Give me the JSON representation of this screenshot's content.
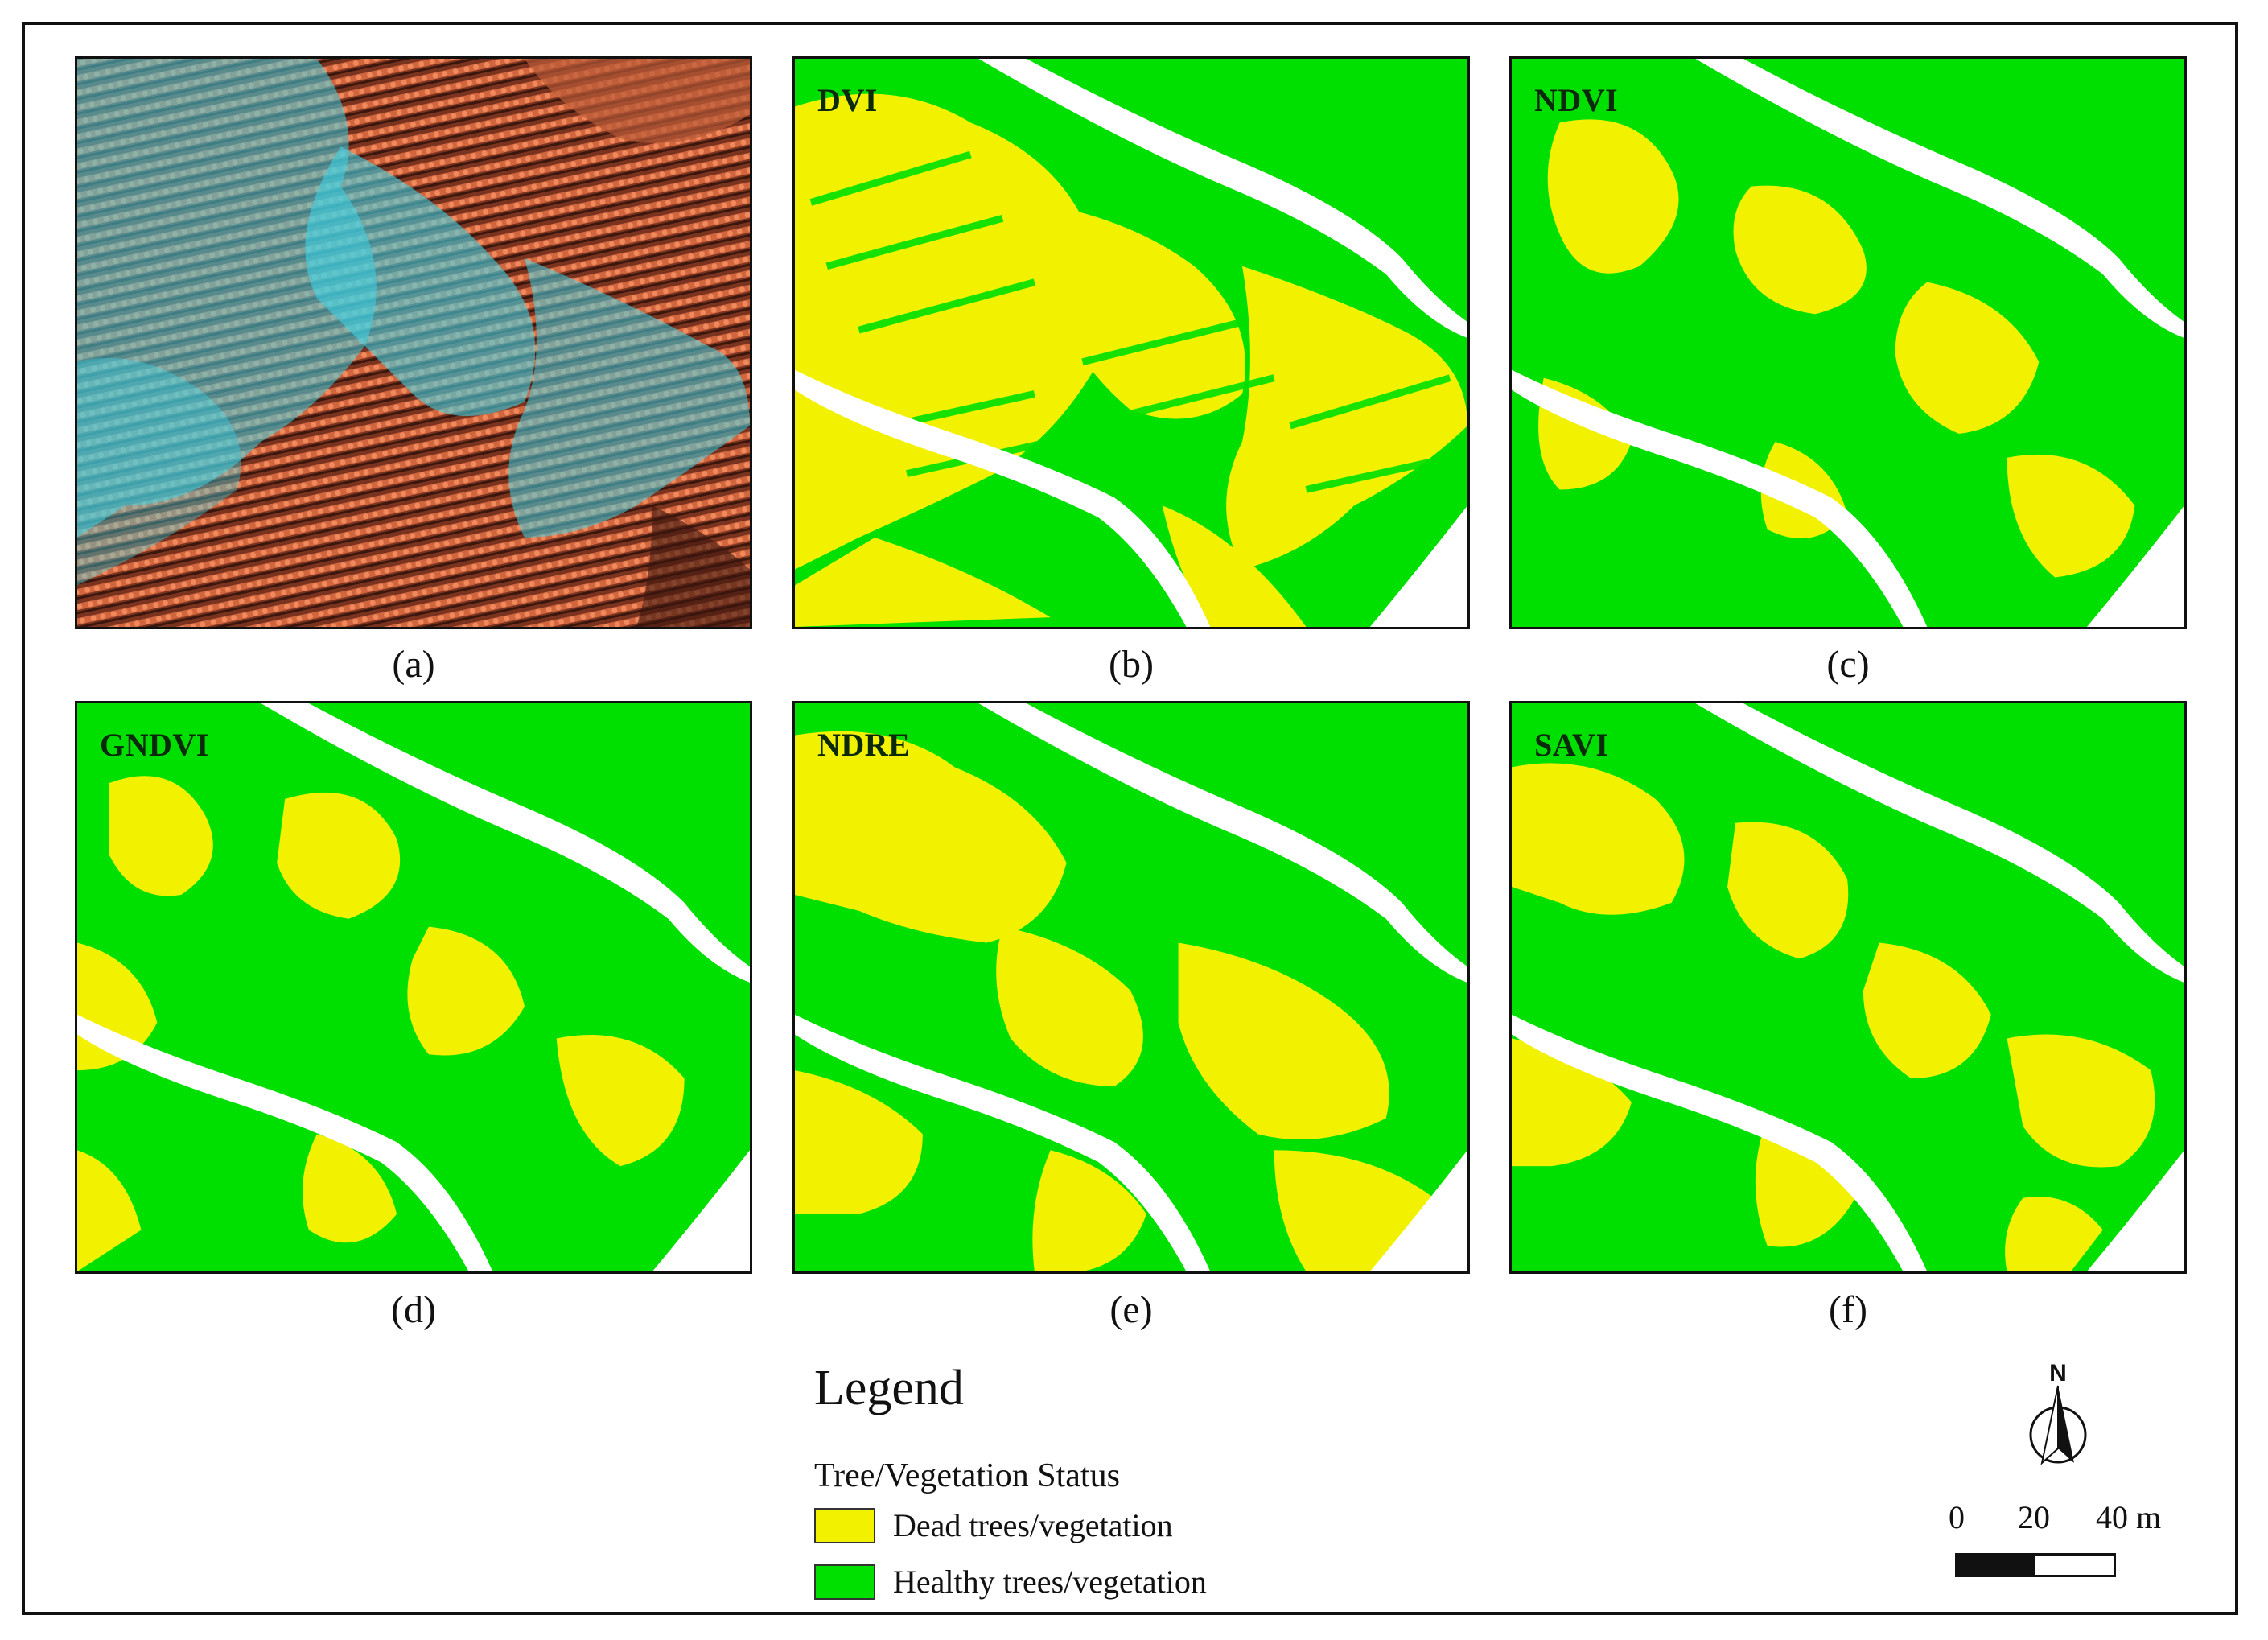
{
  "figure": {
    "panels": [
      {
        "id": "a",
        "title": "",
        "caption": "(a)"
      },
      {
        "id": "b",
        "title": "DVI",
        "caption": "(b)"
      },
      {
        "id": "c",
        "title": "NDVI",
        "caption": "(c)"
      },
      {
        "id": "d",
        "title": "GNDVI",
        "caption": "(d)"
      },
      {
        "id": "e",
        "title": "NDRE",
        "caption": "(e)"
      },
      {
        "id": "f",
        "title": "SAVI",
        "caption": "(f)"
      }
    ]
  },
  "legend": {
    "title": "Legend",
    "subtitle": "Tree/Vegetation Status",
    "items": [
      {
        "label": "Dead trees/vegetation",
        "color": "#f2f200"
      },
      {
        "label": "Healthy trees/vegetation",
        "color": "#00e000"
      }
    ]
  },
  "north_arrow": {
    "label": "N"
  },
  "scale": {
    "labels": [
      "0",
      "20",
      "40 m"
    ]
  },
  "colors": {
    "dead": "#f2f200",
    "healthy": "#00e000",
    "road": "#ffffff",
    "image_base": "#8a3d22",
    "image_cyan": "#3fd4e6"
  }
}
